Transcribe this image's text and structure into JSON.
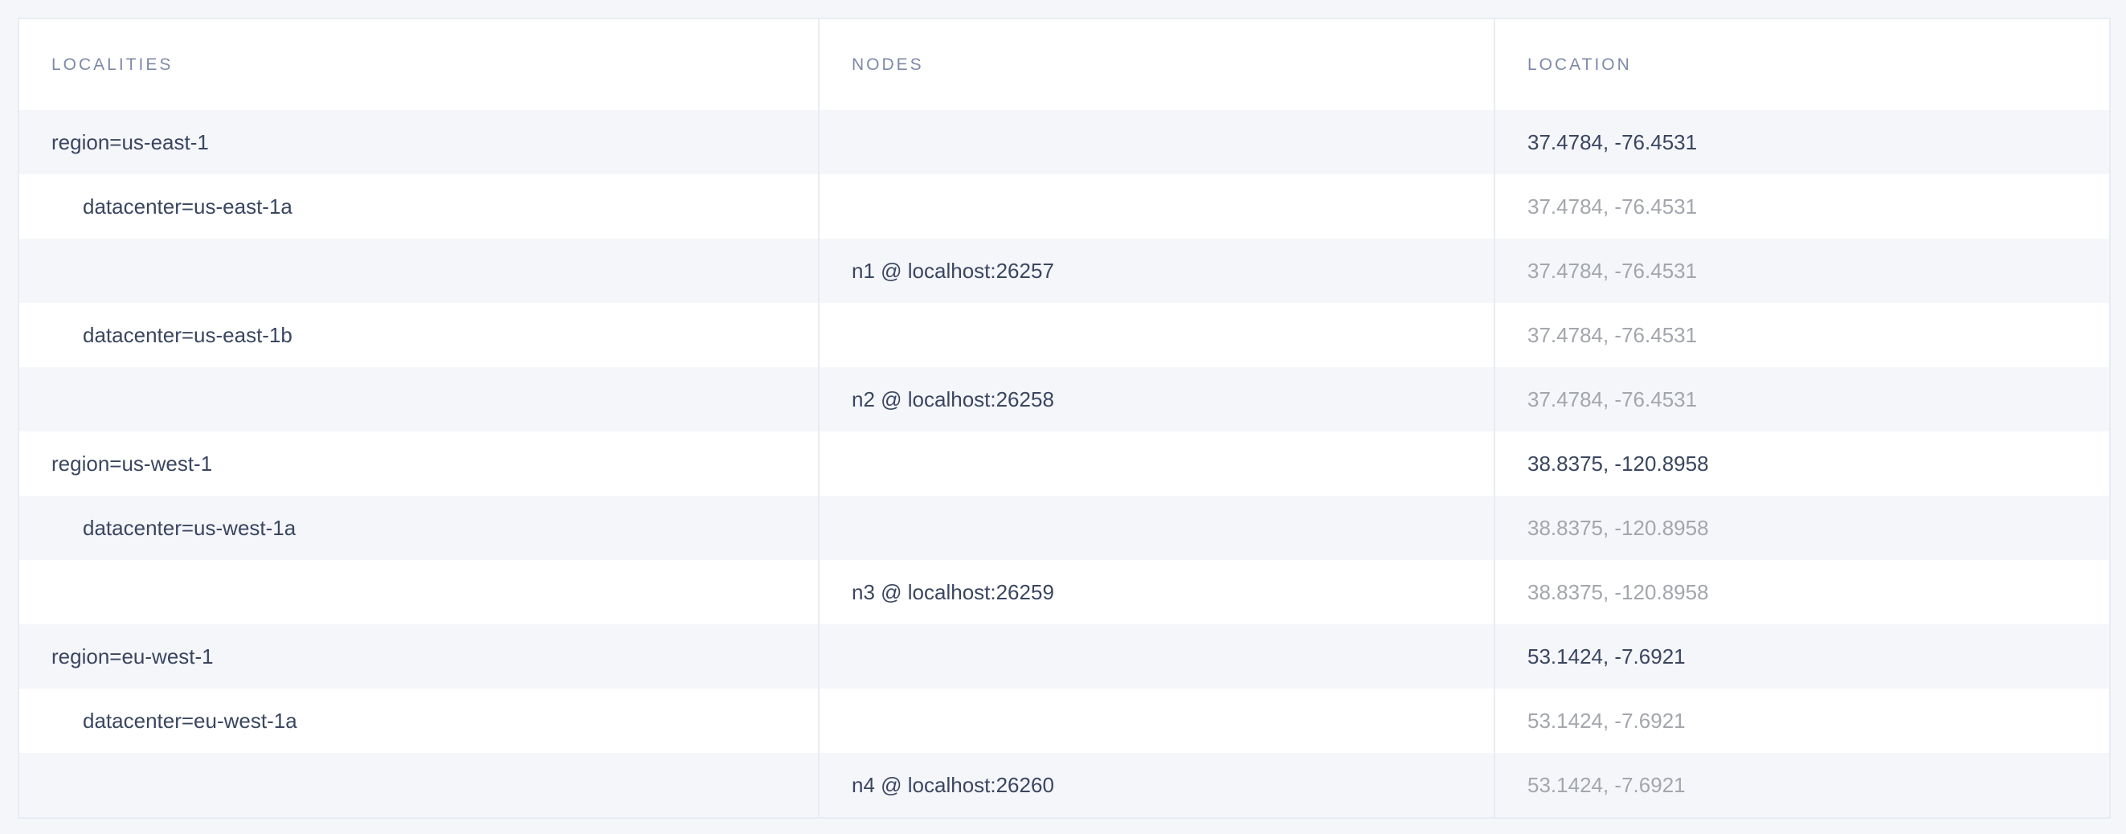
{
  "columns": [
    "LOCALITIES",
    "NODES",
    "LOCATION"
  ],
  "rows": [
    {
      "locality": "region=us-east-1",
      "level": 0,
      "node": "",
      "location": "37.4784, -76.4531"
    },
    {
      "locality": "datacenter=us-east-1a",
      "level": 1,
      "node": "",
      "location": "37.4784, -76.4531"
    },
    {
      "locality": "",
      "level": 2,
      "node": "n1 @ localhost:26257",
      "location": "37.4784, -76.4531"
    },
    {
      "locality": "datacenter=us-east-1b",
      "level": 1,
      "node": "",
      "location": "37.4784, -76.4531"
    },
    {
      "locality": "",
      "level": 2,
      "node": "n2 @ localhost:26258",
      "location": "37.4784, -76.4531"
    },
    {
      "locality": "region=us-west-1",
      "level": 0,
      "node": "",
      "location": "38.8375, -120.8958"
    },
    {
      "locality": "datacenter=us-west-1a",
      "level": 1,
      "node": "",
      "location": "38.8375, -120.8958"
    },
    {
      "locality": "",
      "level": 2,
      "node": "n3 @ localhost:26259",
      "location": "38.8375, -120.8958"
    },
    {
      "locality": "region=eu-west-1",
      "level": 0,
      "node": "",
      "location": "53.1424, -7.6921"
    },
    {
      "locality": "datacenter=eu-west-1a",
      "level": 1,
      "node": "",
      "location": "53.1424, -7.6921"
    },
    {
      "locality": "",
      "level": 2,
      "node": "n4 @ localhost:26260",
      "location": "53.1424, -7.6921"
    }
  ],
  "colors": {
    "text": "#3a4660",
    "muted": "#a3a6ad",
    "header": "#7e89a9",
    "stripe": "#f5f6fa",
    "border": "#e8ecf3"
  }
}
